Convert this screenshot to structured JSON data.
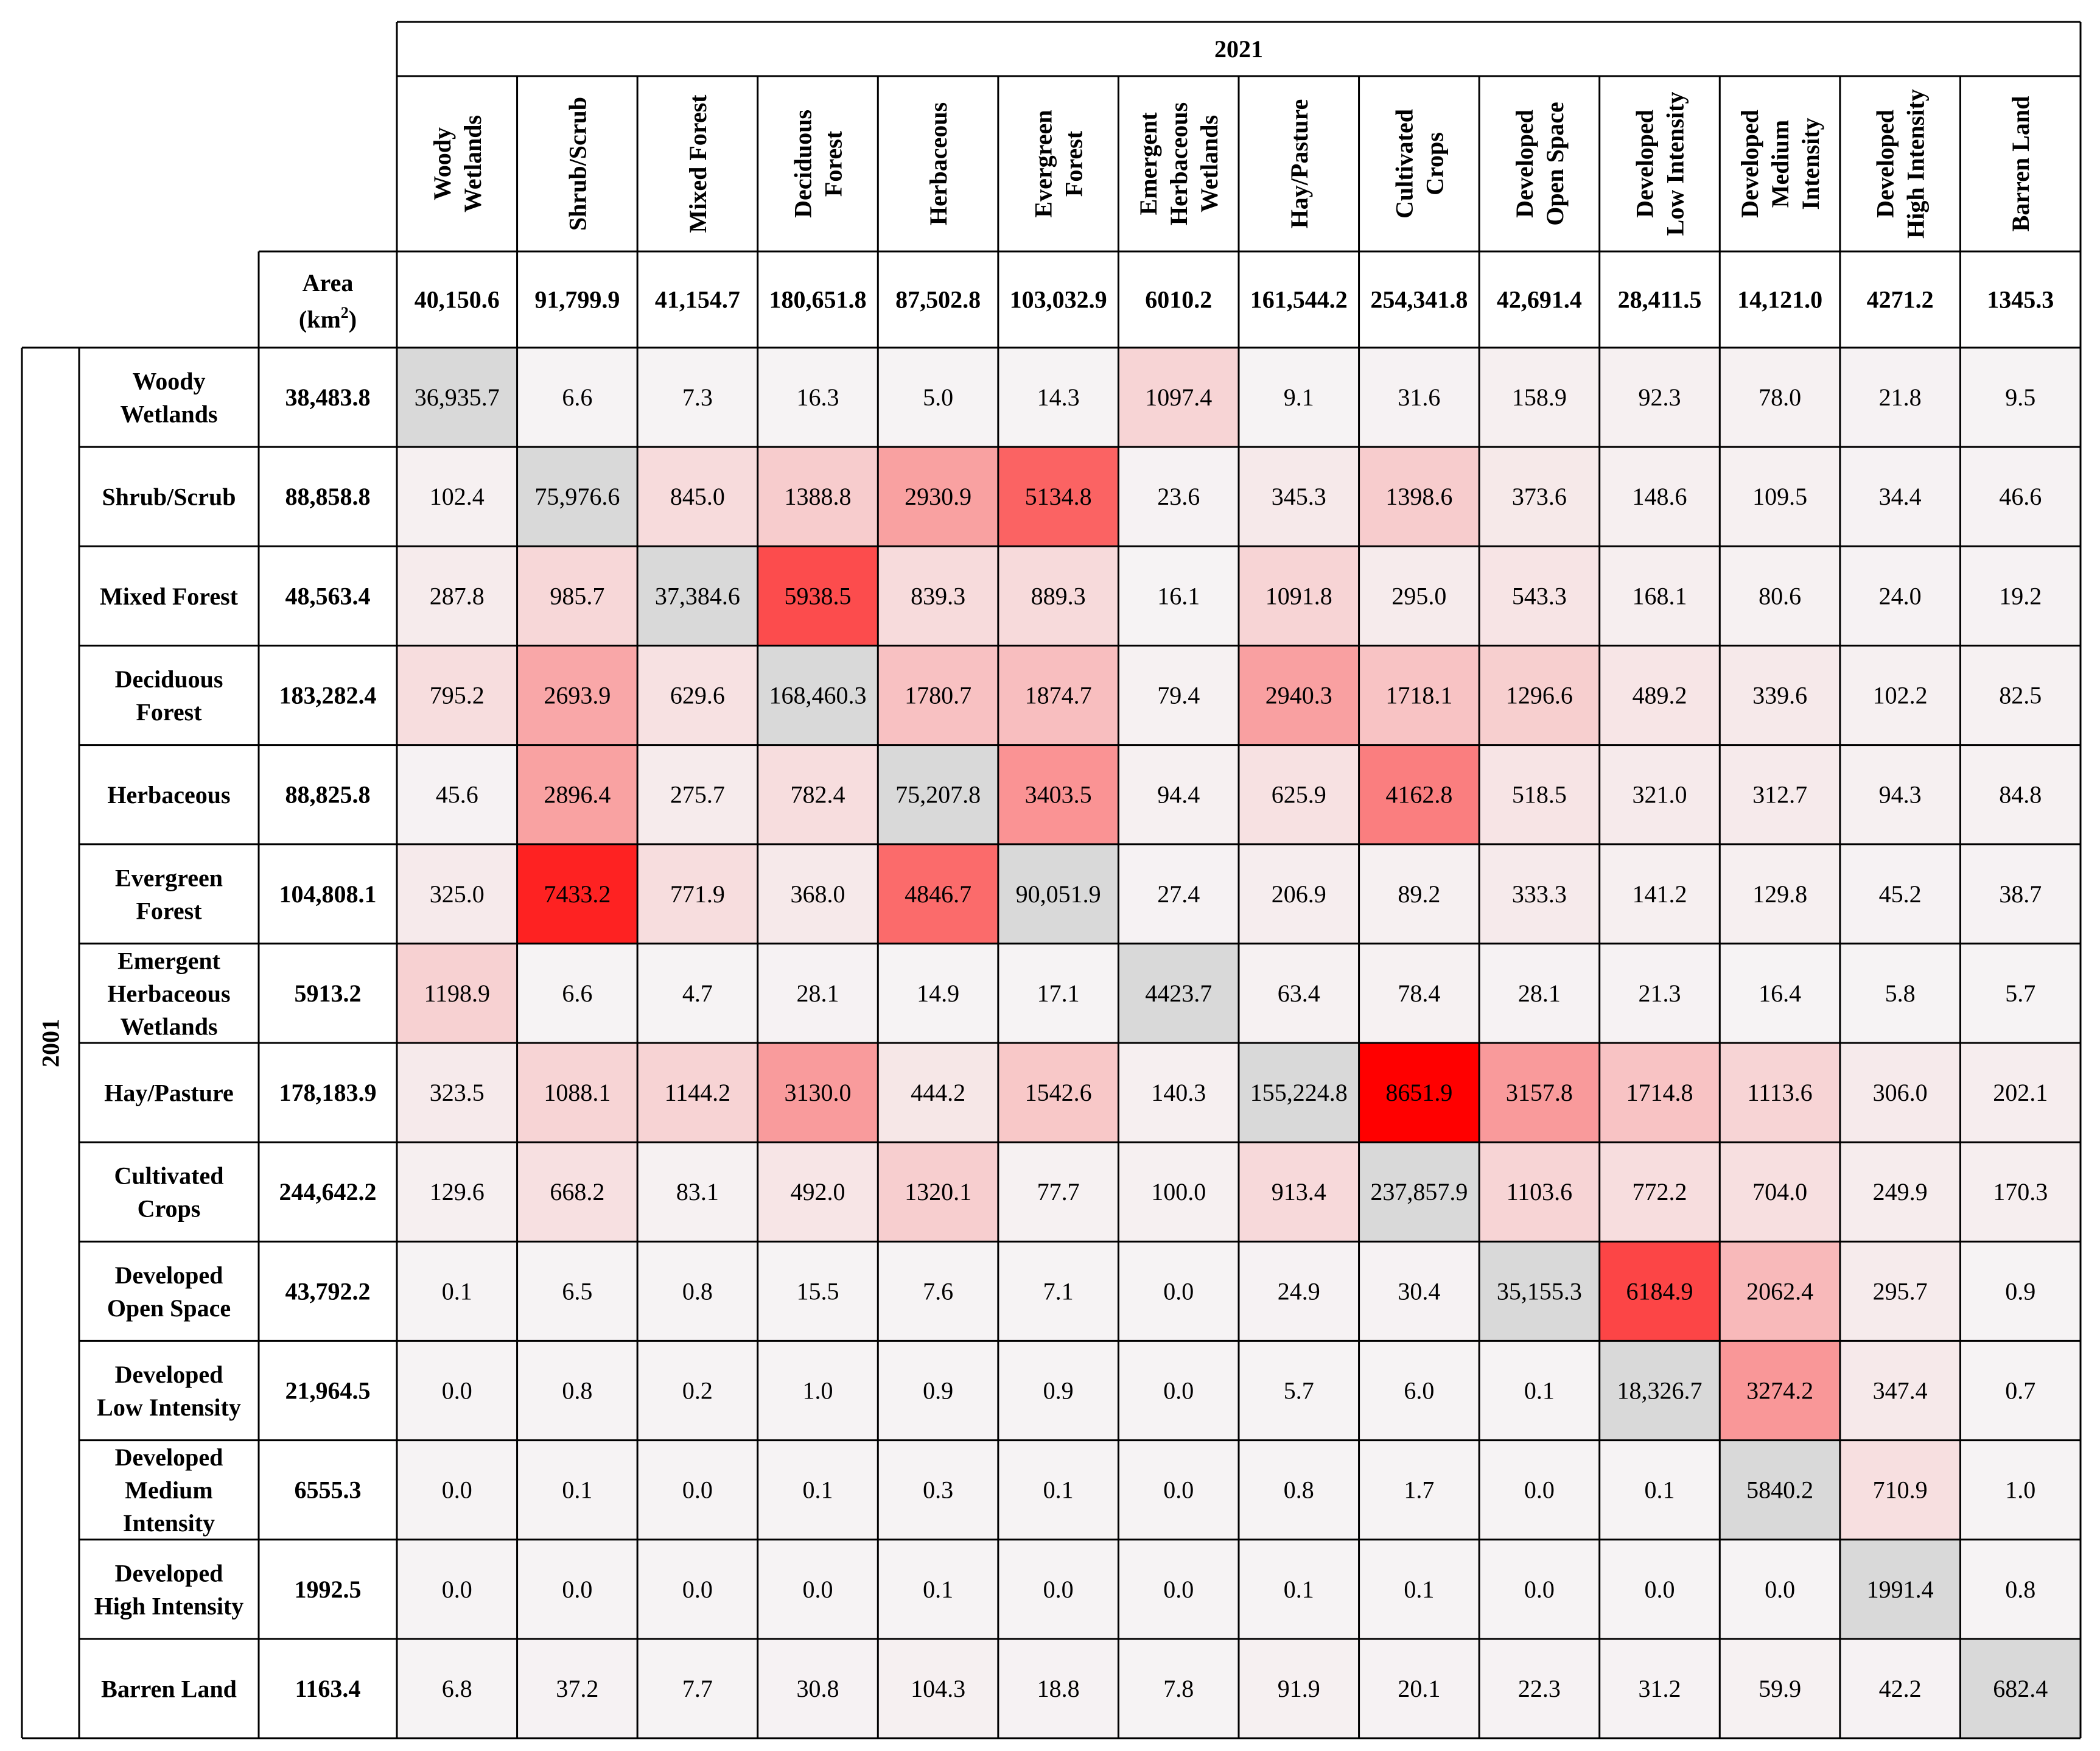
{
  "chart_data": {
    "type": "heatmap",
    "col_axis_label": "2021",
    "row_axis_label": "2001",
    "area_label": "Area (km2)",
    "columns": [
      "Woody Wetlands",
      "Shrub/Scrub",
      "Mixed Forest",
      "Deciduous Forest",
      "Herbaceous",
      "Evergreen Forest",
      "Emergent Herbaceous Wetlands",
      "Hay/Pasture",
      "Cultivated Crops",
      "Developed Open Space",
      "Developed Low Intensity",
      "Developed Medium Intensity",
      "Developed High Intensity",
      "Barren Land"
    ],
    "column_areas": [
      "40,150.6",
      "91,799.9",
      "41,154.7",
      "180,651.8",
      "87,502.8",
      "103,032.9",
      "6010.2",
      "161,544.2",
      "254,341.8",
      "42,691.4",
      "28,411.5",
      "14,121.0",
      "4271.2",
      "1345.3"
    ],
    "rows": [
      "Woody Wetlands",
      "Shrub/Scrub",
      "Mixed Forest",
      "Deciduous Forest",
      "Herbaceous",
      "Evergreen Forest",
      "Emergent Herbaceous Wetlands",
      "Hay/Pasture",
      "Cultivated Crops",
      "Developed Open Space",
      "Developed Low Intensity",
      "Developed Medium Intensity",
      "Developed High Intensity",
      "Barren Land"
    ],
    "row_areas": [
      "38,483.8",
      "88,858.8",
      "48,563.4",
      "183,282.4",
      "88,825.8",
      "104,808.1",
      "5913.2",
      "178,183.9",
      "244,642.2",
      "43,792.2",
      "21,964.5",
      "6555.3",
      "1992.5",
      "1163.4"
    ],
    "values": [
      [
        "36,935.7",
        "6.6",
        "7.3",
        "16.3",
        "5.0",
        "14.3",
        "1097.4",
        "9.1",
        "31.6",
        "158.9",
        "92.3",
        "78.0",
        "21.8",
        "9.5"
      ],
      [
        "102.4",
        "75,976.6",
        "845.0",
        "1388.8",
        "2930.9",
        "5134.8",
        "23.6",
        "345.3",
        "1398.6",
        "373.6",
        "148.6",
        "109.5",
        "34.4",
        "46.6"
      ],
      [
        "287.8",
        "985.7",
        "37,384.6",
        "5938.5",
        "839.3",
        "889.3",
        "16.1",
        "1091.8",
        "295.0",
        "543.3",
        "168.1",
        "80.6",
        "24.0",
        "19.2"
      ],
      [
        "795.2",
        "2693.9",
        "629.6",
        "168,460.3",
        "1780.7",
        "1874.7",
        "79.4",
        "2940.3",
        "1718.1",
        "1296.6",
        "489.2",
        "339.6",
        "102.2",
        "82.5"
      ],
      [
        "45.6",
        "2896.4",
        "275.7",
        "782.4",
        "75,207.8",
        "3403.5",
        "94.4",
        "625.9",
        "4162.8",
        "518.5",
        "321.0",
        "312.7",
        "94.3",
        "84.8"
      ],
      [
        "325.0",
        "7433.2",
        "771.9",
        "368.0",
        "4846.7",
        "90,051.9",
        "27.4",
        "206.9",
        "89.2",
        "333.3",
        "141.2",
        "129.8",
        "45.2",
        "38.7"
      ],
      [
        "1198.9",
        "6.6",
        "4.7",
        "28.1",
        "14.9",
        "17.1",
        "4423.7",
        "63.4",
        "78.4",
        "28.1",
        "21.3",
        "16.4",
        "5.8",
        "5.7"
      ],
      [
        "323.5",
        "1088.1",
        "1144.2",
        "3130.0",
        "444.2",
        "1542.6",
        "140.3",
        "155,224.8",
        "8651.9",
        "3157.8",
        "1714.8",
        "1113.6",
        "306.0",
        "202.1"
      ],
      [
        "129.6",
        "668.2",
        "83.1",
        "492.0",
        "1320.1",
        "77.7",
        "100.0",
        "913.4",
        "237,857.9",
        "1103.6",
        "772.2",
        "704.0",
        "249.9",
        "170.3"
      ],
      [
        "0.1",
        "6.5",
        "0.8",
        "15.5",
        "7.6",
        "7.1",
        "0.0",
        "24.9",
        "30.4",
        "35,155.3",
        "6184.9",
        "2062.4",
        "295.7",
        "0.9"
      ],
      [
        "0.0",
        "0.8",
        "0.2",
        "1.0",
        "0.9",
        "0.9",
        "0.0",
        "5.7",
        "6.0",
        "0.1",
        "18,326.7",
        "3274.2",
        "347.4",
        "0.7"
      ],
      [
        "0.0",
        "0.1",
        "0.0",
        "0.1",
        "0.3",
        "0.1",
        "0.0",
        "0.8",
        "1.7",
        "0.0",
        "0.1",
        "5840.2",
        "710.9",
        "1.0"
      ],
      [
        "0.0",
        "0.0",
        "0.0",
        "0.0",
        "0.1",
        "0.0",
        "0.0",
        "0.1",
        "0.1",
        "0.0",
        "0.0",
        "0.0",
        "1991.4",
        "0.8"
      ],
      [
        "6.8",
        "37.2",
        "7.7",
        "30.8",
        "104.3",
        "18.8",
        "7.8",
        "91.9",
        "20.1",
        "22.3",
        "31.2",
        "59.9",
        "42.2",
        "682.4"
      ]
    ],
    "color_scale": {
      "low": "#f6f3f4",
      "high": "#ff0000",
      "diagonal": "#d9d9d9",
      "max_value": 8651.9
    },
    "grid": true,
    "legend": "none"
  }
}
